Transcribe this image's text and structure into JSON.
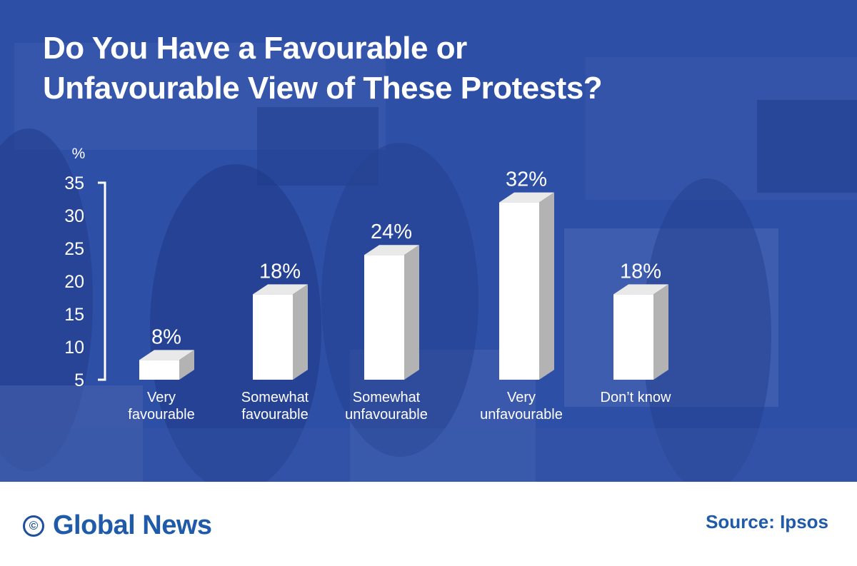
{
  "title_lines": [
    "Do You Have a Favourable or",
    "Unfavourable View of These Protests?"
  ],
  "chart_data": {
    "type": "bar",
    "title": "Do You Have a Favourable or Unfavourable View of These Protests?",
    "ylabel": "%",
    "ylim": [
      5,
      35
    ],
    "yticks": [
      5,
      10,
      15,
      20,
      25,
      30,
      35
    ],
    "categories": [
      [
        "Very",
        "favourable"
      ],
      [
        "Somewhat",
        "favourable"
      ],
      [
        "Somewhat",
        "unfavourable"
      ],
      [
        "Very",
        "unfavourable"
      ],
      [
        "Don’t know"
      ]
    ],
    "values": [
      8,
      18,
      24,
      32,
      18
    ],
    "data_labels": [
      "8%",
      "18%",
      "24%",
      "32%",
      "18%"
    ],
    "grid": false,
    "bar_color": "#ffffff"
  },
  "footer": {
    "brand_icon": "©",
    "brand": "Global News",
    "source": "Source: Ipsos"
  },
  "colors": {
    "overlay": "#2f52a8",
    "brand_blue": "#1f5ba8",
    "text_on_overlay": "#ffffff"
  }
}
